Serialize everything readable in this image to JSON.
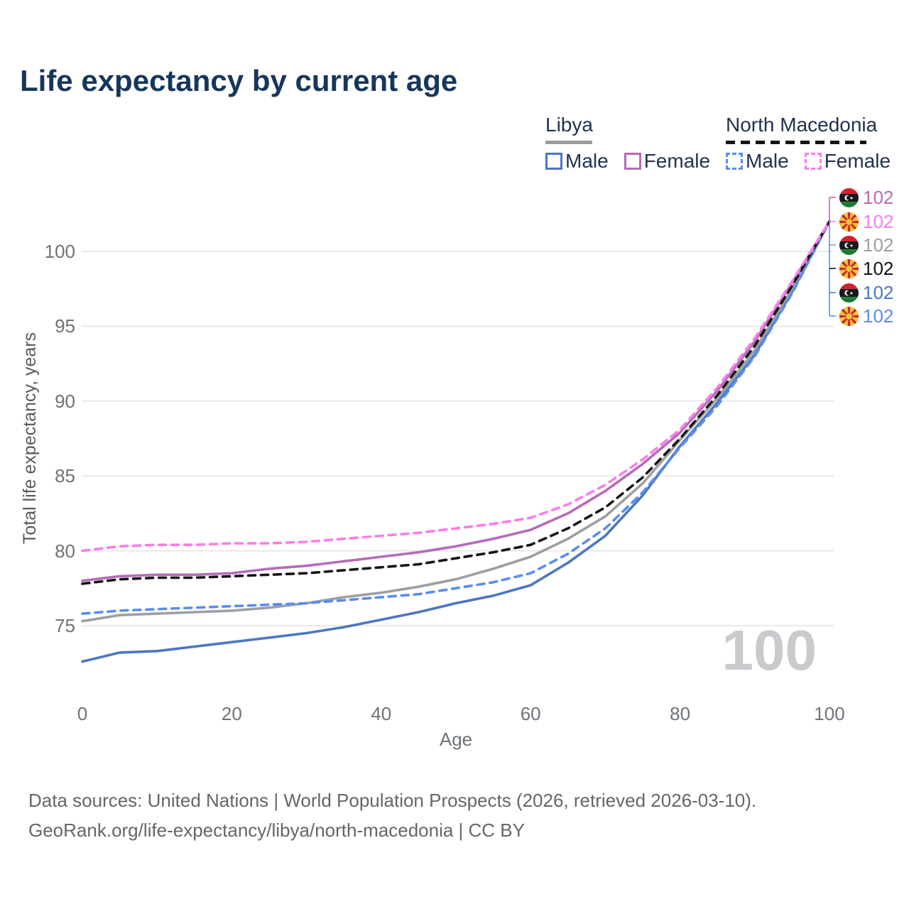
{
  "title": "Life expectancy by current age",
  "legend": {
    "groups": [
      {
        "country": "Libya",
        "line_style": "solid",
        "underline_color": "#9a9ca0",
        "items": [
          {
            "label": "Male",
            "color": "#4d76c2",
            "dashed": false
          },
          {
            "label": "Female",
            "color": "#b56cb8",
            "dashed": false
          }
        ]
      },
      {
        "country": "North Macedonia",
        "line_style": "dashed",
        "underline_color": "#151515",
        "items": [
          {
            "label": "Male",
            "color": "#5a8cf1",
            "dashed": true
          },
          {
            "label": "Female",
            "color": "#fb7de9",
            "dashed": true
          }
        ]
      }
    ]
  },
  "chart_data": {
    "type": "line",
    "title": "Life expectancy by current age",
    "xlabel": "Age",
    "ylabel": "Total life expectancy, years",
    "x_ticks": [
      0,
      20,
      40,
      60,
      80,
      100
    ],
    "y_ticks": [
      75,
      80,
      85,
      90,
      95,
      100
    ],
    "xlim": [
      0,
      100
    ],
    "ylim": [
      72,
      102.5
    ],
    "grid": "horizontal",
    "legend_position": "top-right",
    "x": [
      0,
      5,
      10,
      15,
      20,
      25,
      30,
      35,
      40,
      45,
      50,
      55,
      60,
      65,
      70,
      75,
      80,
      85,
      90,
      95,
      100
    ],
    "series": [
      {
        "name": "Libya Male",
        "country": "Libya",
        "color": "#4d76c2",
        "dashed": false,
        "values": [
          72.6,
          73.2,
          73.3,
          73.6,
          73.9,
          74.2,
          74.5,
          74.9,
          75.4,
          75.9,
          76.5,
          77.0,
          77.7,
          79.2,
          81.0,
          83.7,
          87.0,
          89.9,
          93.1,
          97.3,
          102
        ]
      },
      {
        "name": "Libya Overall",
        "country": "Libya",
        "color": "#9d9fa3",
        "dashed": false,
        "values": [
          75.3,
          75.7,
          75.8,
          75.9,
          76.0,
          76.2,
          76.5,
          76.9,
          77.2,
          77.6,
          78.1,
          78.8,
          79.6,
          80.8,
          82.3,
          84.5,
          87.4,
          90.2,
          93.4,
          97.5,
          102
        ]
      },
      {
        "name": "Libya Female",
        "country": "Libya",
        "color": "#b56cb8",
        "dashed": false,
        "values": [
          78.0,
          78.3,
          78.4,
          78.4,
          78.5,
          78.8,
          79.0,
          79.3,
          79.6,
          79.9,
          80.3,
          80.8,
          81.4,
          82.5,
          84.0,
          85.8,
          87.9,
          90.7,
          94.0,
          97.9,
          102
        ]
      },
      {
        "name": "North Macedonia Male",
        "country": "North Macedonia",
        "color": "#5a8cf1",
        "dashed": true,
        "values": [
          75.8,
          76.0,
          76.1,
          76.2,
          76.3,
          76.4,
          76.5,
          76.7,
          76.9,
          77.1,
          77.5,
          77.9,
          78.5,
          79.8,
          81.5,
          83.9,
          86.9,
          89.7,
          93.0,
          97.2,
          102
        ]
      },
      {
        "name": "North Macedonia Overall",
        "country": "North Macedonia",
        "color": "#151515",
        "dashed": true,
        "values": [
          77.8,
          78.1,
          78.2,
          78.2,
          78.3,
          78.4,
          78.5,
          78.7,
          78.9,
          79.1,
          79.5,
          79.9,
          80.4,
          81.5,
          82.9,
          84.9,
          87.5,
          90.4,
          93.7,
          97.7,
          102
        ]
      },
      {
        "name": "North Macedonia Female",
        "country": "North Macedonia",
        "color": "#fb7de9",
        "dashed": true,
        "values": [
          80.0,
          80.3,
          80.4,
          80.4,
          80.5,
          80.5,
          80.6,
          80.8,
          81.0,
          81.2,
          81.5,
          81.8,
          82.2,
          83.1,
          84.4,
          86.1,
          88.1,
          90.9,
          94.2,
          98.0,
          102
        ]
      }
    ]
  },
  "end_labels": [
    {
      "flag": "libya",
      "value": "102",
      "color": "#b56cb8"
    },
    {
      "flag": "north-macedonia",
      "value": "102",
      "color": "#fb7de9"
    },
    {
      "flag": "libya",
      "value": "102",
      "color": "#9d9fa3"
    },
    {
      "flag": "north-macedonia",
      "value": "102",
      "color": "#151515"
    },
    {
      "flag": "libya",
      "value": "102",
      "color": "#4d76c2"
    },
    {
      "flag": "north-macedonia",
      "value": "102",
      "color": "#5a8cf1"
    }
  ],
  "watermark": "100",
  "footer": {
    "line1": "Data sources: United Nations | World Population Prospects (2026, retrieved 2026-03-10).",
    "line2": "GeoRank.org/life-expectancy/libya/north-macedonia | CC BY"
  }
}
